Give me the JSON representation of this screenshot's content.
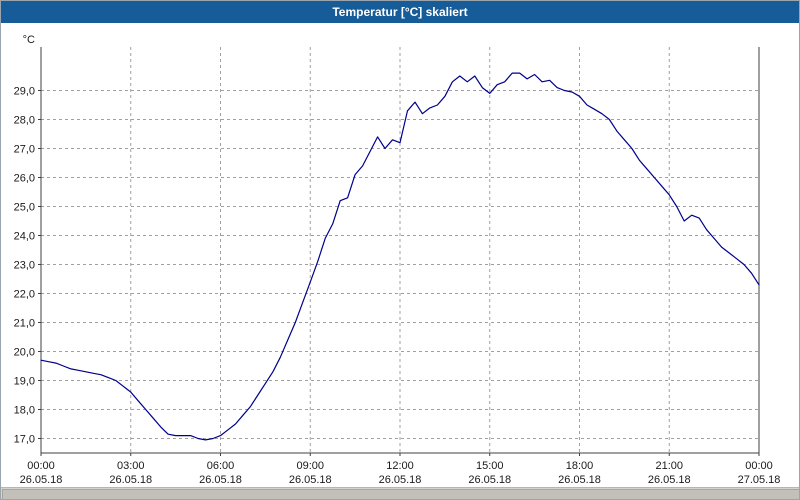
{
  "window": {
    "title": "Temperatur [°C] skaliert"
  },
  "colors": {
    "titlebar": "#155c99",
    "titlebar_text": "#ffffff",
    "line": "#00008b",
    "grid": "#a0a0a0",
    "axis": "#404040",
    "tick_text": "#1a1a1a",
    "background": "#ffffff"
  },
  "chart_data": {
    "type": "line",
    "title": "Temperatur [°C] skaliert",
    "xlabel": "",
    "ylabel": "°C",
    "ylim": [
      16.5,
      30.5
    ],
    "xlim_hours": [
      0,
      24
    ],
    "grid": true,
    "legend": "none",
    "y_ticks": [
      17,
      18,
      19,
      20,
      21,
      22,
      23,
      24,
      25,
      26,
      27,
      28,
      29
    ],
    "y_tick_labels": [
      "17,0",
      "18,0",
      "19,0",
      "20,0",
      "21,0",
      "22,0",
      "23,0",
      "24,0",
      "25,0",
      "26,0",
      "27,0",
      "28,0",
      "29,0"
    ],
    "x_ticks_hours": [
      0,
      3,
      6,
      9,
      12,
      15,
      18,
      21,
      24
    ],
    "x_tick_times": [
      "00:00",
      "03:00",
      "06:00",
      "09:00",
      "12:00",
      "15:00",
      "18:00",
      "21:00",
      "00:00"
    ],
    "x_tick_dates": [
      "26.05.18",
      "26.05.18",
      "26.05.18",
      "26.05.18",
      "26.05.18",
      "26.05.18",
      "26.05.18",
      "26.05.18",
      "27.05.18"
    ],
    "series": [
      {
        "name": "Temperatur",
        "x_hours": [
          0,
          0.25,
          0.5,
          0.75,
          1,
          1.25,
          1.5,
          1.75,
          2,
          2.25,
          2.5,
          2.75,
          3,
          3.25,
          3.5,
          3.75,
          4,
          4.25,
          4.5,
          4.75,
          5,
          5.25,
          5.5,
          5.75,
          6,
          6.25,
          6.5,
          6.75,
          7,
          7.25,
          7.5,
          7.75,
          8,
          8.25,
          8.5,
          8.75,
          9,
          9.25,
          9.5,
          9.75,
          10,
          10.25,
          10.5,
          10.75,
          11,
          11.25,
          11.5,
          11.75,
          12,
          12.25,
          12.5,
          12.75,
          13,
          13.25,
          13.5,
          13.75,
          14,
          14.25,
          14.5,
          14.75,
          15,
          15.25,
          15.5,
          15.75,
          16,
          16.25,
          16.5,
          16.75,
          17,
          17.25,
          17.5,
          17.75,
          18,
          18.25,
          18.5,
          18.75,
          19,
          19.25,
          19.5,
          19.75,
          20,
          20.25,
          20.5,
          20.75,
          21,
          21.25,
          21.5,
          21.75,
          22,
          22.25,
          22.5,
          22.75,
          23,
          23.25,
          23.5,
          23.75,
          24
        ],
        "values": [
          19.7,
          19.65,
          19.6,
          19.5,
          19.4,
          19.35,
          19.3,
          19.25,
          19.2,
          19.1,
          19.0,
          18.8,
          18.6,
          18.3,
          18.0,
          17.7,
          17.4,
          17.15,
          17.1,
          17.1,
          17.1,
          17.0,
          16.95,
          17.0,
          17.1,
          17.3,
          17.5,
          17.8,
          18.1,
          18.5,
          18.9,
          19.3,
          19.8,
          20.4,
          21.0,
          21.7,
          22.4,
          23.1,
          23.9,
          24.4,
          25.2,
          25.3,
          26.1,
          26.4,
          26.9,
          27.4,
          27.0,
          27.3,
          27.2,
          28.3,
          28.6,
          28.2,
          28.4,
          28.5,
          28.8,
          29.3,
          29.5,
          29.3,
          29.5,
          29.1,
          28.9,
          29.2,
          29.3,
          29.6,
          29.6,
          29.4,
          29.55,
          29.3,
          29.35,
          29.1,
          29.0,
          28.95,
          28.8,
          28.5,
          28.35,
          28.2,
          28.0,
          27.6,
          27.3,
          27.0,
          26.6,
          26.3,
          26.0,
          25.7,
          25.4,
          25.0,
          24.5,
          24.7,
          24.6,
          24.2,
          23.9,
          23.6,
          23.4,
          23.2,
          23.0,
          22.7,
          22.3
        ]
      }
    ]
  }
}
